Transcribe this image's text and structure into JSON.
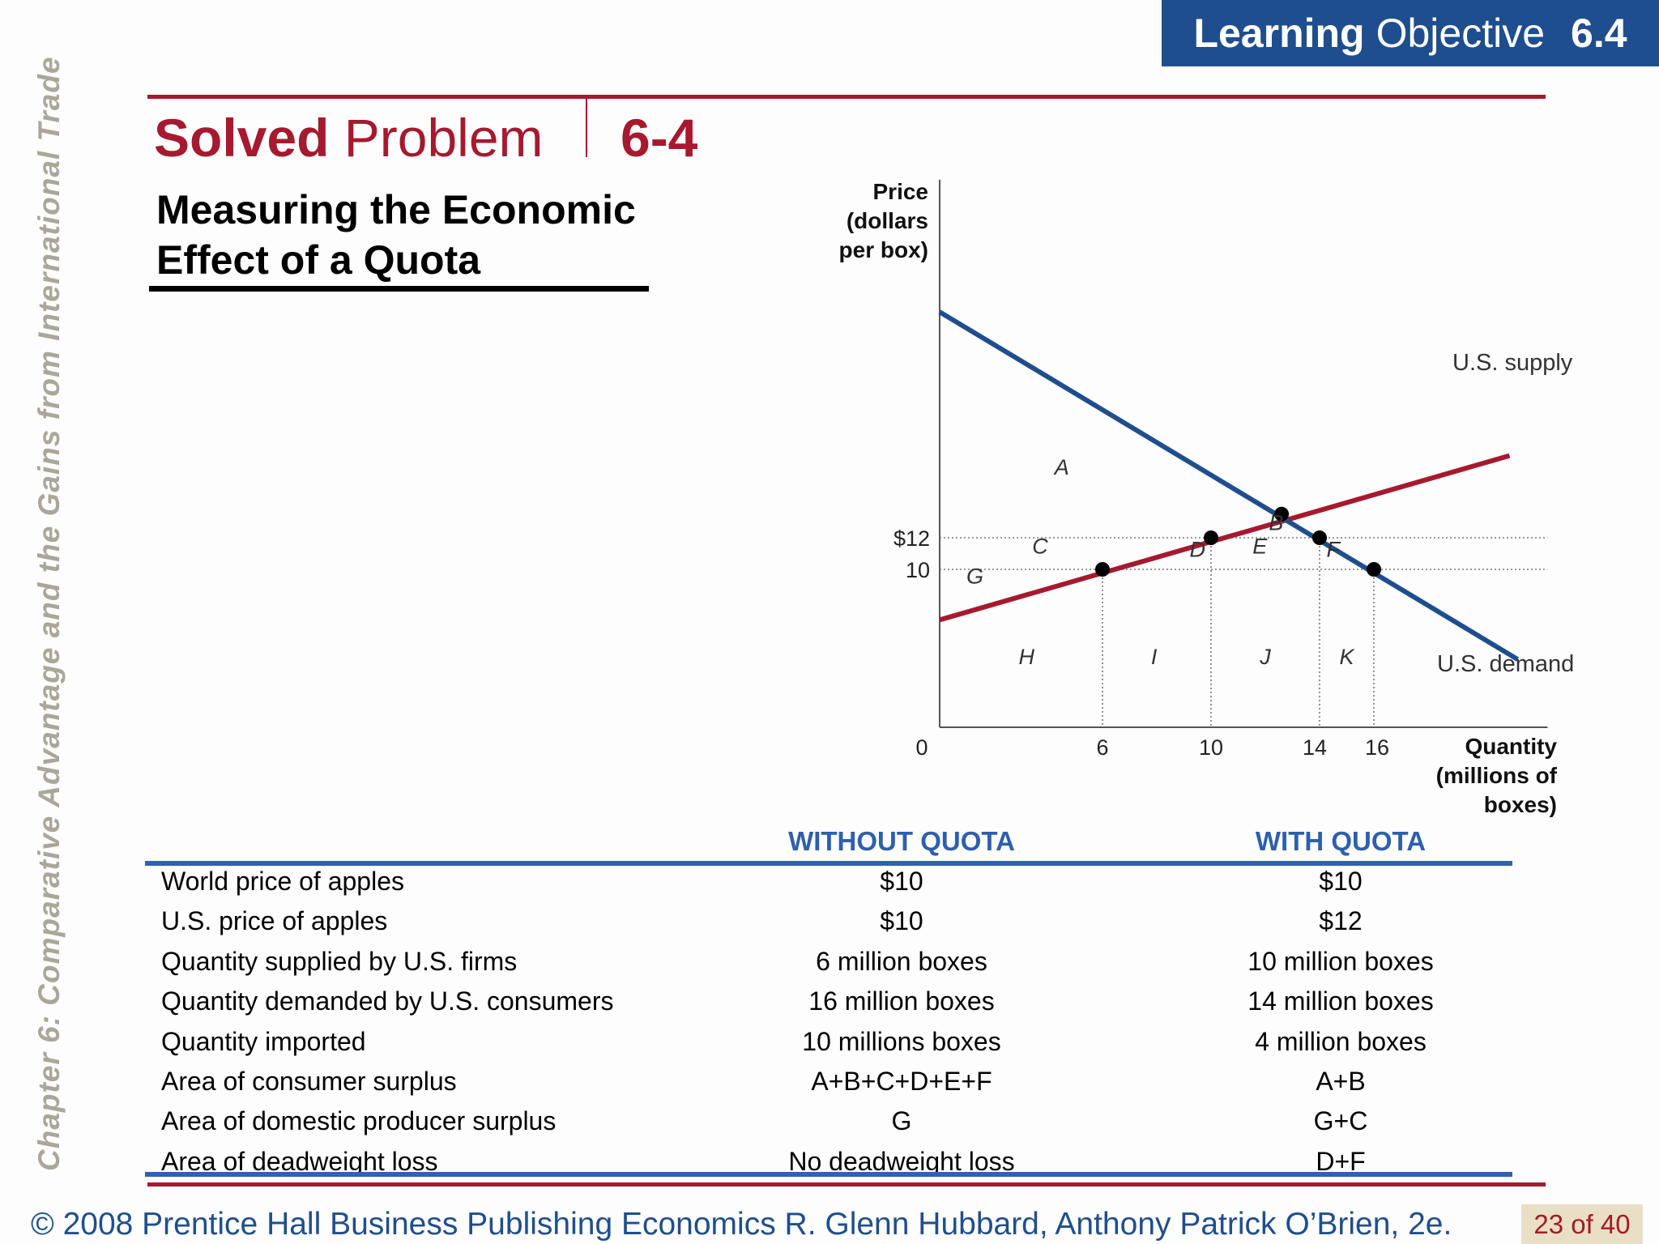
{
  "side_title": "Chapter 6:  Comparative Advantage and the Gains from International Trade",
  "learning_objective": {
    "word1": "Learning",
    "word2": "Objective",
    "number": "6.4"
  },
  "solved_problem": {
    "bold": "Solved",
    "rest": "Problem",
    "number": "6-4"
  },
  "subtitle": {
    "line1": "Measuring the Economic",
    "line2": "Effect of a Quota"
  },
  "colors": {
    "brand_red": "#a6192e",
    "brand_blue": "#1f4e8e",
    "demand_line": "#1f4e8e",
    "supply_line": "#a6192e",
    "table_blue": "#2e5fae"
  },
  "chart_data": {
    "type": "line",
    "ylabel": [
      "Price",
      "(dollars",
      "per box)"
    ],
    "xlabel": [
      "Quantity",
      "(millions of",
      "boxes)"
    ],
    "origin_label": "0",
    "x_ticks": [
      {
        "value": 6,
        "label": "6"
      },
      {
        "value": 10,
        "label": "10"
      },
      {
        "value": 14,
        "label": "14"
      },
      {
        "value": 16,
        "label": "16"
      }
    ],
    "y_ticks": [
      {
        "value": 10,
        "label": "10"
      },
      {
        "value": 12,
        "label": "$12"
      }
    ],
    "xlim": [
      0,
      22.4
    ],
    "ylim": [
      0,
      20
    ],
    "series": [
      {
        "name": "U.S. supply",
        "color": "#a6192e",
        "points": [
          [
            0,
            6.8
          ],
          [
            21,
            17.2
          ]
        ]
      },
      {
        "name": "U.S. demand",
        "color": "#1f4e8e",
        "points": [
          [
            0,
            26.3
          ],
          [
            21.3,
            4.3
          ]
        ]
      }
    ],
    "points": [
      [
        6,
        10
      ],
      [
        10,
        12
      ],
      [
        12.6,
        13.5
      ],
      [
        14,
        12
      ],
      [
        16,
        10
      ]
    ],
    "guides": {
      "horizontal": [
        10,
        12
      ],
      "vertical": [
        {
          "x": 6,
          "top": 10
        },
        {
          "x": 10,
          "top": 12
        },
        {
          "x": 14,
          "top": 12
        },
        {
          "x": 16,
          "top": 10
        }
      ]
    },
    "area_labels": [
      {
        "label": "A",
        "x": 4.5,
        "y": 16
      },
      {
        "label": "B",
        "x": 12.4,
        "y": 12.5
      },
      {
        "label": "C",
        "x": 3.7,
        "y": 11.0
      },
      {
        "label": "D",
        "x": 9.5,
        "y": 10.8
      },
      {
        "label": "E",
        "x": 11.8,
        "y": 11.0
      },
      {
        "label": "F",
        "x": 14.5,
        "y": 10.8
      },
      {
        "label": "G",
        "x": 1.3,
        "y": 9.1
      },
      {
        "label": "H",
        "x": 3.2,
        "y": 4.0
      },
      {
        "label": "I",
        "x": 7.9,
        "y": 4.0
      },
      {
        "label": "J",
        "x": 12.0,
        "y": 4.0
      },
      {
        "label": "K",
        "x": 15.0,
        "y": 4.0
      }
    ]
  },
  "table": {
    "headers": [
      "WITHOUT QUOTA",
      "WITH QUOTA"
    ],
    "rows": [
      {
        "label": "World price of apples",
        "without": "$10",
        "with": "$10"
      },
      {
        "label": "U.S. price of apples",
        "without": "$10",
        "with": "$12"
      },
      {
        "label": "Quantity supplied by U.S. firms",
        "without": "6 million boxes",
        "with": "10 million boxes"
      },
      {
        "label": "Quantity demanded by U.S. consumers",
        "without": "16 million boxes",
        "with": "14 million boxes"
      },
      {
        "label": "Quantity imported",
        "without": "10 millions boxes",
        "with": "4 million boxes"
      },
      {
        "label": "Area of consumer surplus",
        "without": "A+B+C+D+E+F",
        "with": "A+B"
      },
      {
        "label": "Area of domestic producer surplus",
        "without": "G",
        "with": "G+C"
      },
      {
        "label": "Area of deadweight loss",
        "without": "No deadweight loss",
        "with": "D+F"
      }
    ]
  },
  "footer": "© 2008 Prentice Hall Business Publishing   Economics  R. Glenn Hubbard, Anthony Patrick O’Brien, 2e.",
  "page": "23 of 40"
}
